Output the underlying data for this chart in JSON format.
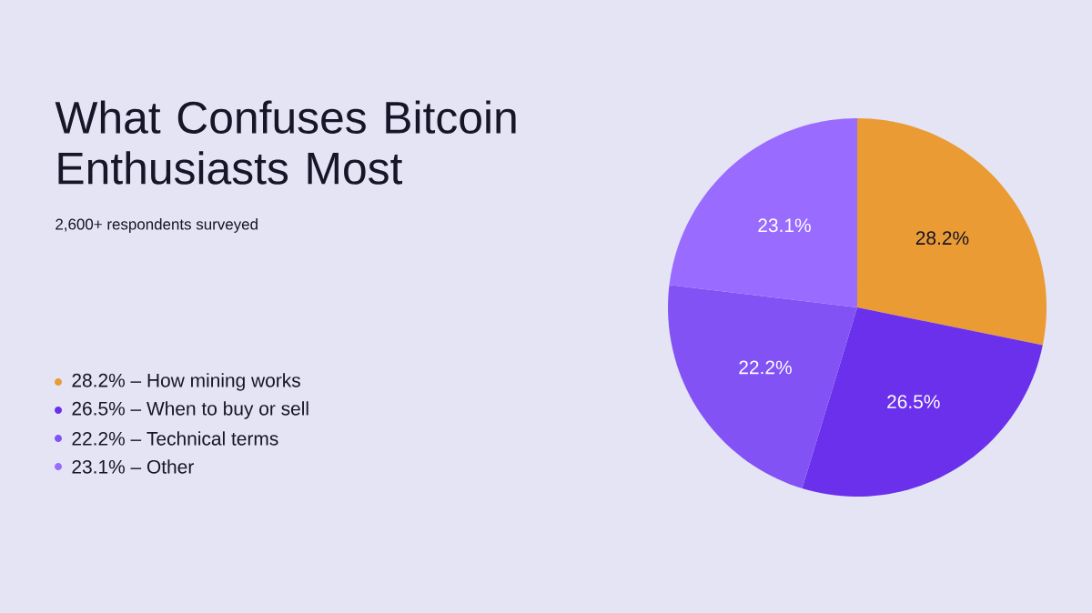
{
  "chart_data": {
    "type": "pie",
    "title": "What Confuses Bitcoin Enthusiasts Most",
    "subtitle": "2,600+ respondents surveyed",
    "categories": [
      "28.2% – How mining works",
      "26.5% – When to buy or sell",
      "22.2% – Technical terms",
      "23.1% – Other"
    ],
    "values": [
      28.2,
      26.5,
      22.2,
      23.1
    ],
    "value_labels": [
      "28.2%",
      "26.5%",
      "22.2%",
      "23.1%"
    ],
    "colors": [
      "#eb9b33",
      "#6a30eb",
      "#8252f5",
      "#9a6bff"
    ],
    "legend": "left"
  }
}
